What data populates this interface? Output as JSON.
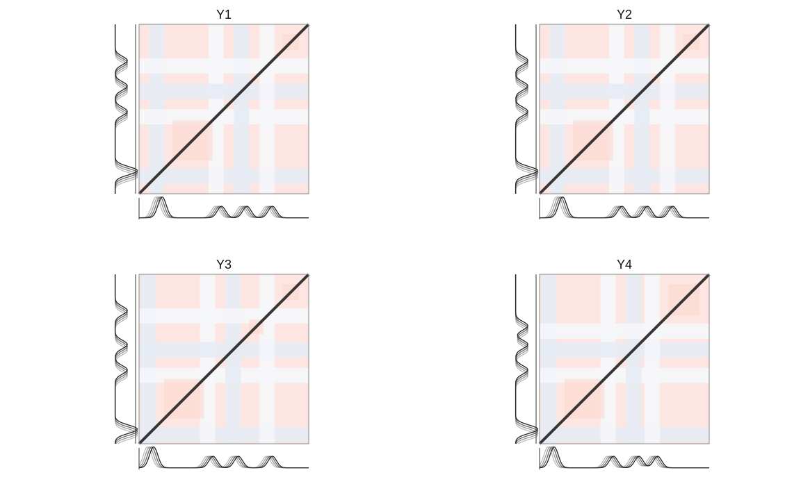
{
  "chart_data": [
    {
      "type": "heatmap",
      "title": "Y1"
    },
    {
      "type": "heatmap",
      "title": "Y2"
    },
    {
      "type": "heatmap",
      "title": "Y3"
    },
    {
      "type": "heatmap",
      "title": "Y4"
    }
  ]
}
